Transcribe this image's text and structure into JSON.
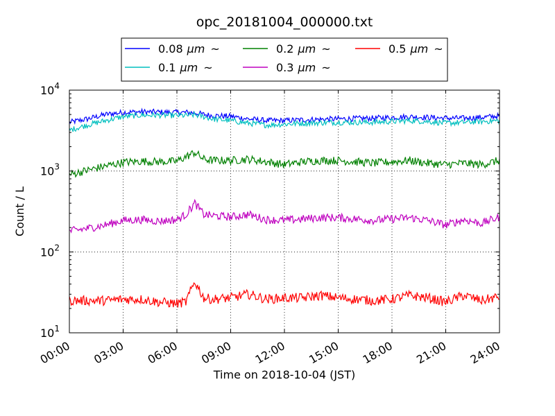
{
  "chart_data": {
    "type": "line",
    "title": "opc_20181004_000000.txt",
    "xlabel": "Time on 2018-10-04 (JST)",
    "ylabel": "Count / L",
    "y_scale": "log",
    "ylim": [
      10,
      10000
    ],
    "xlim": [
      "00:00",
      "24:00"
    ],
    "grid": true,
    "legend_position": "top-center (above plot)",
    "x_ticks": [
      "00:00",
      "03:00",
      "06:00",
      "09:00",
      "12:00",
      "15:00",
      "18:00",
      "21:00",
      "24:00"
    ],
    "y_ticks": [
      {
        "value": 10,
        "base": "10",
        "exp": "1"
      },
      {
        "value": 100,
        "base": "10",
        "exp": "2"
      },
      {
        "value": 1000,
        "base": "10",
        "exp": "3"
      },
      {
        "value": 10000,
        "base": "10",
        "exp": "4"
      }
    ],
    "x_hours": [
      0,
      1,
      2,
      3,
      4,
      5,
      6,
      6.5,
      7,
      7.5,
      8,
      9,
      10,
      11,
      12,
      13,
      14,
      15,
      16,
      17,
      18,
      19,
      20,
      21,
      22,
      23,
      24
    ],
    "series": [
      {
        "name": "0.08 μm ~",
        "label_main": "0.08",
        "label_unit": "μm",
        "label_tilde": "~",
        "color": "#0000ff",
        "noise": 0.035,
        "values": [
          4000,
          4400,
          5000,
          5300,
          5400,
          5350,
          5300,
          5300,
          5250,
          5000,
          4850,
          4750,
          4400,
          4200,
          4200,
          4300,
          4350,
          4400,
          4450,
          4500,
          4600,
          4700,
          4600,
          4500,
          4500,
          4600,
          4800
        ]
      },
      {
        "name": "0.1 μm ~",
        "label_main": "0.1",
        "label_unit": "μm",
        "label_tilde": "~",
        "color": "#00bfbf",
        "noise": 0.035,
        "values": [
          3200,
          3700,
          4200,
          4700,
          4900,
          4900,
          4850,
          4850,
          4950,
          4700,
          4400,
          4200,
          3900,
          3700,
          3800,
          3900,
          3950,
          4000,
          4000,
          4000,
          4100,
          4200,
          4100,
          3900,
          4000,
          4100,
          4200
        ]
      },
      {
        "name": "0.2 μm ~",
        "label_main": "0.2",
        "label_unit": "μm",
        "label_tilde": "~",
        "color": "#008000",
        "noise": 0.05,
        "values": [
          900,
          1020,
          1150,
          1280,
          1320,
          1300,
          1320,
          1500,
          1700,
          1400,
          1350,
          1350,
          1400,
          1300,
          1200,
          1300,
          1350,
          1350,
          1300,
          1250,
          1300,
          1350,
          1250,
          1200,
          1250,
          1200,
          1350
        ]
      },
      {
        "name": "0.3 μm ~",
        "label_main": "0.3",
        "label_unit": "μm",
        "label_tilde": "~",
        "color": "#bf00bf",
        "noise": 0.05,
        "values": [
          180,
          195,
          215,
          245,
          250,
          240,
          250,
          290,
          400,
          290,
          280,
          270,
          290,
          250,
          245,
          255,
          265,
          265,
          255,
          245,
          255,
          265,
          245,
          215,
          250,
          225,
          270
        ]
      },
      {
        "name": "0.5 μm ~",
        "label_main": "0.5",
        "label_unit": "μm",
        "label_tilde": "~",
        "color": "#ff0000",
        "noise": 0.06,
        "values": [
          25,
          25,
          25,
          26,
          26,
          24,
          23,
          24,
          43,
          27,
          26,
          27,
          30,
          26,
          27,
          27,
          29,
          27,
          26,
          25,
          26,
          29,
          27,
          24,
          29,
          25,
          28
        ]
      }
    ]
  }
}
